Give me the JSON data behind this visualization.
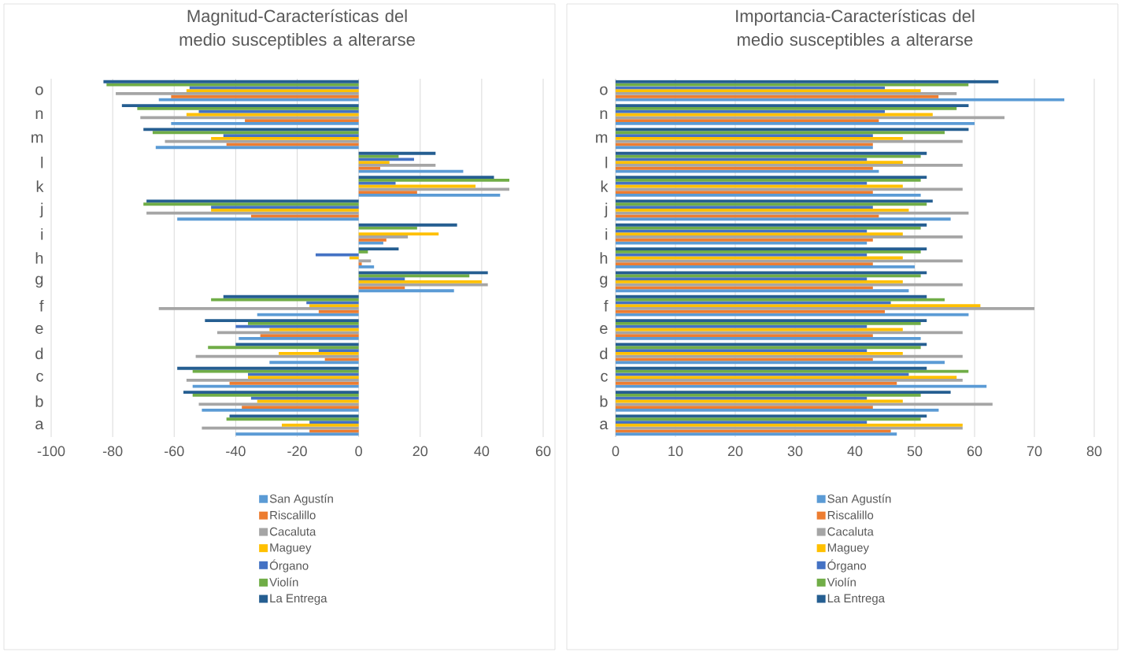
{
  "chart_data": [
    {
      "type": "bar",
      "orientation": "horizontal",
      "title": "Magnitud-Características del medio susceptibles a alterarse",
      "categories": [
        "o",
        "n",
        "m",
        "l",
        "k",
        "j",
        "i",
        "h",
        "g",
        "f",
        "e",
        "d",
        "c",
        "b",
        "a"
      ],
      "series": [
        {
          "name": "San Agustín",
          "color": "#5b9bd5",
          "values": [
            -65,
            -61,
            -66,
            34,
            46,
            -59,
            8,
            5,
            31,
            -33,
            -39,
            -29,
            -54,
            -51,
            -40
          ]
        },
        {
          "name": "Riscalillo",
          "color": "#ed7d31",
          "values": [
            -61,
            -37,
            -43,
            7,
            19,
            -35,
            9,
            1,
            15,
            -13,
            -32,
            -11,
            -42,
            -38,
            -16
          ]
        },
        {
          "name": "Cacaluta",
          "color": "#a5a5a5",
          "values": [
            -79,
            -71,
            -63,
            25,
            49,
            -69,
            16,
            4,
            42,
            -65,
            -46,
            -53,
            -56,
            -52,
            -51
          ]
        },
        {
          "name": "Maguey",
          "color": "#ffc000",
          "values": [
            -56,
            -56,
            -48,
            10,
            38,
            -48,
            26,
            -3,
            40,
            -16,
            -29,
            -26,
            -36,
            -33,
            -25
          ]
        },
        {
          "name": "Órgano",
          "color": "#4472c4",
          "values": [
            -55,
            -52,
            -44,
            18,
            12,
            -48,
            0,
            -14,
            15,
            -17,
            -40,
            -13,
            -36,
            -35,
            -16
          ]
        },
        {
          "name": "Violín",
          "color": "#70ad47",
          "values": [
            -82,
            -72,
            -67,
            13,
            49,
            -70,
            19,
            3,
            36,
            -48,
            -36,
            -49,
            -54,
            -54,
            -43
          ]
        },
        {
          "name": "La Entrega",
          "color": "#255e91",
          "values": [
            -83,
            -77,
            -70,
            25,
            44,
            -69,
            32,
            13,
            42,
            -44,
            -50,
            -40,
            -59,
            -57,
            -42
          ]
        }
      ],
      "xlim": [
        -100,
        60
      ],
      "xticks": [
        -100,
        -80,
        -60,
        -40,
        -20,
        0,
        20,
        40,
        60
      ],
      "grid": "x",
      "legend": "bottom"
    },
    {
      "type": "bar",
      "orientation": "horizontal",
      "title": "Importancia-Características del medio susceptibles a alterarse",
      "categories": [
        "o",
        "n",
        "m",
        "l",
        "k",
        "j",
        "i",
        "h",
        "g",
        "f",
        "e",
        "d",
        "c",
        "b",
        "a"
      ],
      "series": [
        {
          "name": "San Agustín",
          "color": "#5b9bd5",
          "values": [
            75,
            60,
            43,
            44,
            51,
            56,
            42,
            50,
            49,
            59,
            51,
            55,
            62,
            54,
            47
          ]
        },
        {
          "name": "Riscalillo",
          "color": "#ed7d31",
          "values": [
            54,
            44,
            43,
            43,
            43,
            44,
            43,
            43,
            43,
            45,
            43,
            43,
            47,
            43,
            46
          ]
        },
        {
          "name": "Cacaluta",
          "color": "#a5a5a5",
          "values": [
            57,
            65,
            58,
            58,
            58,
            59,
            58,
            58,
            58,
            70,
            58,
            58,
            58,
            63,
            58
          ]
        },
        {
          "name": "Maguey",
          "color": "#ffc000",
          "values": [
            51,
            53,
            48,
            48,
            48,
            49,
            48,
            48,
            48,
            61,
            48,
            48,
            57,
            48,
            58
          ]
        },
        {
          "name": "Órgano",
          "color": "#4472c4",
          "values": [
            45,
            45,
            43,
            42,
            42,
            43,
            42,
            42,
            42,
            46,
            42,
            42,
            49,
            42,
            42
          ]
        },
        {
          "name": "Violín",
          "color": "#70ad47",
          "values": [
            59,
            57,
            55,
            51,
            51,
            52,
            51,
            51,
            51,
            55,
            51,
            51,
            59,
            51,
            51
          ]
        },
        {
          "name": "La Entrega",
          "color": "#255e91",
          "values": [
            64,
            59,
            59,
            52,
            52,
            53,
            52,
            52,
            52,
            52,
            52,
            52,
            52,
            56,
            52
          ]
        }
      ],
      "xlim": [
        0,
        80
      ],
      "xticks": [
        0,
        10,
        20,
        30,
        40,
        50,
        60,
        70,
        80
      ],
      "grid": "x",
      "legend": "bottom"
    }
  ]
}
